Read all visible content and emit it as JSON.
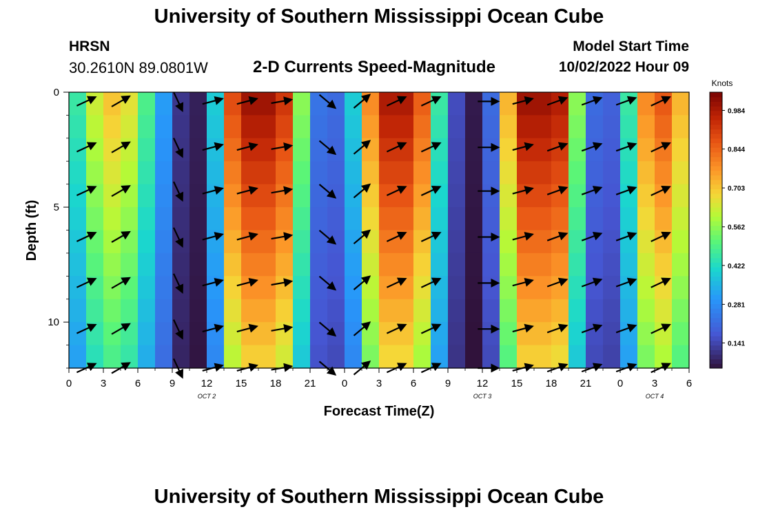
{
  "header": {
    "title": "University of Southern Mississippi Ocean Cube",
    "station_name": "HRSN",
    "station_coords": "30.2610N  89.0801W",
    "subtitle": "2-D Currents Speed-Magnitude",
    "model_start_label": "Model Start Time",
    "model_start_time": "10/02/2022 Hour 09"
  },
  "footer": {
    "title": "University of Southern Mississippi Ocean Cube"
  },
  "chart_data": {
    "type": "heatmap",
    "title": "2-D Currents Speed-Magnitude",
    "xlabel": "Forecast Time(Z)",
    "ylabel": "Depth (ft)",
    "x_unit": "hours",
    "xlim": [
      0,
      54
    ],
    "ylim": [
      0,
      12
    ],
    "y_inverted": true,
    "x_tick_values": [
      0,
      3,
      6,
      9,
      12,
      15,
      18,
      21,
      24,
      27,
      30,
      33,
      36,
      39,
      42,
      45,
      48,
      51,
      54
    ],
    "x_tick_labels": [
      "0",
      "3",
      "6",
      "9",
      "12",
      "15",
      "18",
      "21",
      "0",
      "3",
      "6",
      "9",
      "12",
      "15",
      "18",
      "21",
      "0",
      "3",
      "6"
    ],
    "y_tick_values": [
      0,
      5,
      10
    ],
    "y_tick_labels": [
      "0",
      "5",
      "10"
    ],
    "date_labels": [
      {
        "x": 12,
        "text": "OCT 2"
      },
      {
        "x": 36,
        "text": "OCT 3"
      },
      {
        "x": 51,
        "text": "OCT 4"
      }
    ],
    "colorbar": {
      "unit": "Knots",
      "min": 0.05,
      "max": 1.05,
      "ticks": [
        0.141,
        0.281,
        0.422,
        0.562,
        0.703,
        0.844,
        0.984
      ]
    },
    "time_columns": [
      0,
      1.5,
      3,
      4.5,
      6,
      7.5,
      9,
      10.5,
      12,
      13.5,
      15,
      16.5,
      18,
      19.5,
      21,
      22.5,
      24,
      25.5,
      27,
      28.5,
      30,
      31.5,
      33,
      34.5,
      36,
      37.5,
      39,
      40.5,
      42,
      43.5,
      45,
      46.5,
      48,
      49.5,
      51,
      52.5
    ],
    "surface_speed_knots": [
      0.45,
      0.62,
      0.7,
      0.65,
      0.48,
      0.3,
      0.1,
      0.06,
      0.38,
      0.88,
      1.0,
      1.0,
      0.92,
      0.55,
      0.22,
      0.2,
      0.38,
      0.78,
      0.98,
      0.98,
      0.85,
      0.45,
      0.14,
      0.05,
      0.2,
      0.72,
      1.0,
      1.0,
      0.97,
      0.55,
      0.2,
      0.18,
      0.45,
      0.78,
      0.86,
      0.72
    ],
    "vector_depths_ft": [
      0.4,
      2.4,
      4.3,
      6.3,
      8.3,
      10.3,
      12.0
    ],
    "vector_times_h": [
      1.5,
      4.5,
      9.5,
      12.5,
      15.5,
      18.5,
      22.5,
      25.5,
      28.5,
      31.5,
      36.5,
      39.5,
      42.5,
      45.5,
      48.5,
      51.5
    ],
    "vector_angles_deg": [
      -25,
      -30,
      65,
      -15,
      -15,
      -10,
      40,
      -40,
      -25,
      -25,
      0,
      -15,
      -20,
      -20,
      -20,
      -25
    ],
    "vector_length_scale": 0.6
  }
}
